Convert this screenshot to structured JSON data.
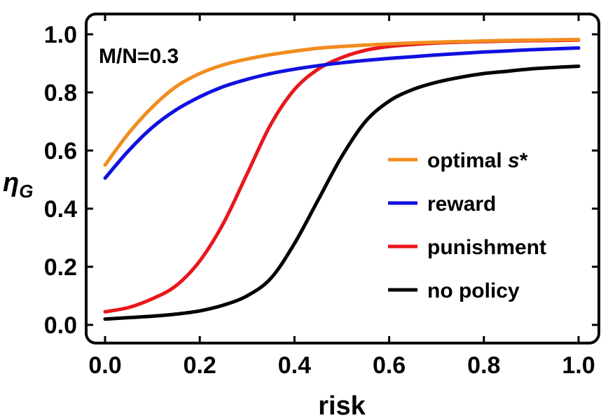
{
  "chart_data": {
    "type": "line",
    "title": "",
    "annotation": "M/N=0.3",
    "xlabel": "risk",
    "ylabel_main": "η",
    "ylabel_sub": "G",
    "xlim": [
      0,
      1
    ],
    "ylim": [
      0,
      1
    ],
    "xticks": [
      "0.0",
      "0.2",
      "0.4",
      "0.6",
      "0.8",
      "1.0"
    ],
    "yticks": [
      "0.0",
      "0.2",
      "0.4",
      "0.6",
      "0.8",
      "1.0"
    ],
    "legend_position": "center-right",
    "x": [
      0.0,
      0.05,
      0.1,
      0.15,
      0.2,
      0.25,
      0.3,
      0.35,
      0.4,
      0.45,
      0.5,
      0.55,
      0.6,
      0.65,
      0.7,
      0.75,
      0.8,
      0.85,
      0.9,
      0.95,
      1.0
    ],
    "series": [
      {
        "name": "optimal ",
        "name_italic": "s",
        "name_suffix": "*",
        "color": "#f28c1e",
        "values": [
          0.55,
          0.66,
          0.75,
          0.82,
          0.865,
          0.895,
          0.915,
          0.93,
          0.942,
          0.952,
          0.958,
          0.963,
          0.967,
          0.97,
          0.973,
          0.975,
          0.977,
          0.979,
          0.98,
          0.981,
          0.982
        ]
      },
      {
        "name": "reward",
        "name_italic": "",
        "name_suffix": "",
        "color": "#1010e0",
        "values": [
          0.505,
          0.6,
          0.68,
          0.74,
          0.785,
          0.82,
          0.845,
          0.865,
          0.88,
          0.892,
          0.902,
          0.91,
          0.917,
          0.923,
          0.929,
          0.934,
          0.939,
          0.943,
          0.947,
          0.95,
          0.953
        ]
      },
      {
        "name": "punishment",
        "name_italic": "",
        "name_suffix": "",
        "color": "#e8161b",
        "values": [
          0.045,
          0.06,
          0.09,
          0.135,
          0.22,
          0.35,
          0.52,
          0.69,
          0.81,
          0.88,
          0.92,
          0.945,
          0.958,
          0.965,
          0.97,
          0.973,
          0.975,
          0.977,
          0.978,
          0.979,
          0.98
        ]
      },
      {
        "name": "no policy",
        "name_italic": "",
        "name_suffix": "",
        "color": "#000000",
        "values": [
          0.02,
          0.025,
          0.03,
          0.037,
          0.048,
          0.068,
          0.1,
          0.16,
          0.28,
          0.43,
          0.58,
          0.7,
          0.77,
          0.81,
          0.835,
          0.852,
          0.865,
          0.873,
          0.881,
          0.886,
          0.89
        ]
      }
    ]
  }
}
